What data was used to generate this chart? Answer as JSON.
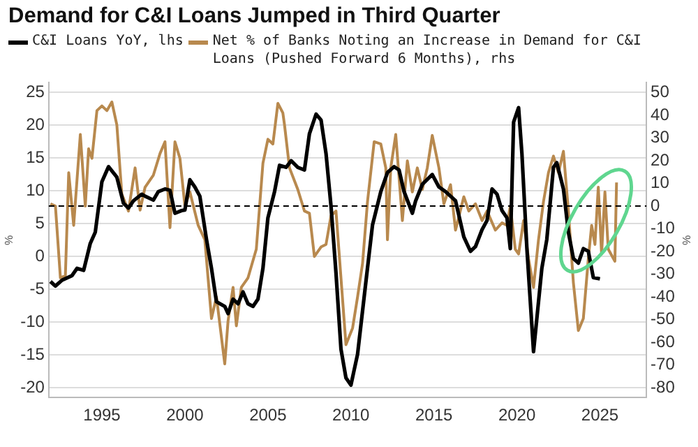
{
  "chart_data": {
    "type": "line",
    "title": "Demand for C&I Loans Jumped in Third Quarter",
    "ylabel": "%",
    "y2label": "%",
    "legend": "top left",
    "grid": "y",
    "xlim": [
      1991.8,
      2027.8
    ],
    "xticks": [
      1995,
      2000,
      2005,
      2010,
      2015,
      2020,
      2025
    ],
    "ylim": [
      -21.5,
      26.5
    ],
    "yticks": [
      -20,
      -15,
      -10,
      -5,
      0,
      5,
      10,
      15,
      20,
      25
    ],
    "y2lim": [
      -84.3,
      54.3
    ],
    "y2ticks": [
      -80,
      -70,
      -60,
      -50,
      -40,
      -30,
      -20,
      -10,
      0,
      10,
      20,
      30,
      40,
      50
    ],
    "ref_lines": [
      {
        "axis": "y2",
        "value": 0,
        "color": "#000000",
        "line_style": "dashed"
      }
    ],
    "series": [
      {
        "name": "C&I Loans YoY, lhs",
        "color": "#000000",
        "x": [
          1991.9,
          1992.2,
          1992.6,
          1993.2,
          1993.5,
          1993.9,
          1994.3,
          1994.6,
          1995,
          1995.4,
          1995.9,
          1996.3,
          1996.6,
          1996.9,
          1997.4,
          1997.6,
          1998.1,
          1998.4,
          1998.8,
          1999.1,
          1999.4,
          1999.8,
          2000,
          2000.3,
          2000.6,
          2000.9,
          2001.3,
          2001.6,
          2001.9,
          2002.4,
          2002.6,
          2002.9,
          2003.2,
          2003.5,
          2003.8,
          2004.1,
          2004.4,
          2004.7,
          2005,
          2005.4,
          2005.7,
          2006.1,
          2006.4,
          2006.8,
          2007.2,
          2007.5,
          2007.9,
          2008.2,
          2008.5,
          2008.8,
          2009.1,
          2009.4,
          2009.7,
          2010,
          2010.4,
          2010.9,
          2011.3,
          2011.8,
          2012.2,
          2012.6,
          2012.9,
          2013.2,
          2013.7,
          2013.9,
          2014.3,
          2014.9,
          2015.3,
          2015.7,
          2016.3,
          2016.8,
          2017.2,
          2017.5,
          2017.9,
          2018.2,
          2018.5,
          2018.8,
          2019.1,
          2019.4,
          2019.6,
          2019.8,
          2020.1,
          2020.3,
          2020.6,
          2021,
          2021.5,
          2021.8,
          2022.2,
          2022.4,
          2022.8,
          2023.1,
          2023.4,
          2023.7,
          2024,
          2024.3,
          2024.6,
          2025
        ],
        "values": [
          -3.8,
          -4.5,
          -3.6,
          -2.9,
          -1.8,
          -2.1,
          2,
          3.7,
          11.4,
          13.7,
          12.1,
          8.1,
          7.4,
          8.5,
          9.5,
          9.2,
          8.6,
          9.9,
          10.3,
          10.1,
          6.6,
          7.0,
          7.1,
          11.7,
          10.6,
          9.2,
          2.6,
          -1.8,
          -6.9,
          -7.6,
          -8.7,
          -6.5,
          -7.2,
          -5.4,
          -7.2,
          -7.6,
          -6.5,
          -1.8,
          5.9,
          9.9,
          13.9,
          13.6,
          14.6,
          13.6,
          13.2,
          18.7,
          21.7,
          20.8,
          15.7,
          7.7,
          -2.5,
          -14.1,
          -18.5,
          -19.6,
          -14.9,
          -3.9,
          4.8,
          9.9,
          12.8,
          13.7,
          13.2,
          9.9,
          6.6,
          8.5,
          11,
          12.5,
          10.6,
          9.9,
          8.5,
          3,
          0.8,
          1.5,
          4.1,
          5.5,
          10.3,
          9.5,
          7,
          5.9,
          1.2,
          20.5,
          22.7,
          15.7,
          1.2,
          -14.5,
          -1.8,
          2.6,
          13.6,
          14.3,
          10.3,
          3.7,
          -0.3,
          -1.0,
          1.2,
          0.8,
          -3.2,
          -3.4
        ]
      },
      {
        "name": "Net % of Banks Noting an Increase in Demand for C&I Loans (Pushed Forward 6 Months), rhs",
        "color": "#b8894e",
        "axis": "y2",
        "x": [
          1991.9,
          1992.2,
          1992.5,
          1992.8,
          1993,
          1993.3,
          1993.7,
          1994,
          1994.2,
          1994.4,
          1994.7,
          1995,
          1995.3,
          1995.6,
          1995.9,
          1996.2,
          1996.6,
          1997,
          1997.3,
          1997.6,
          1998.1,
          1998.5,
          1998.8,
          1999.1,
          1999.4,
          1999.7,
          2000,
          2000.3,
          2000.8,
          2001.2,
          2001.6,
          2001.9,
          2002.4,
          2002.6,
          2002.9,
          2003.1,
          2003.4,
          2003.8,
          2004.3,
          2004.7,
          2005,
          2005.3,
          2005.6,
          2005.9,
          2006,
          2006.3,
          2006.8,
          2007.2,
          2007.5,
          2007.8,
          2008.2,
          2008.5,
          2008.8,
          2009.1,
          2009.7,
          2010.1,
          2010.4,
          2010.7,
          2011,
          2011.4,
          2011.8,
          2012.1,
          2012.2,
          2012.4,
          2012.7,
          2013.1,
          2013.4,
          2013.7,
          2014,
          2014.3,
          2014.6,
          2014.9,
          2015.3,
          2015.6,
          2016,
          2016.3,
          2016.8,
          2017.1,
          2017.5,
          2017.9,
          2018.2,
          2018.7,
          2019.1,
          2019.4,
          2019.6,
          2019.9,
          2020.1,
          2020.4,
          2020.7,
          2021,
          2021.3,
          2021.6,
          2021.9,
          2022.2,
          2022.5,
          2022.8,
          2023.1,
          2023.4,
          2023.7,
          2024,
          2024.3,
          2024.5,
          2024.7,
          2024.9,
          2025.1,
          2025.3,
          2025.5,
          2025.9,
          2026
        ],
        "values": [
          1.0,
          0,
          -31.6,
          -30.6,
          14.7,
          -8.5,
          31.5,
          0,
          25.2,
          21,
          42,
          44.1,
          42,
          45.8,
          35.7,
          5.2,
          -2.2,
          16.8,
          -1.8,
          8.3,
          13.6,
          23.1,
          28.3,
          -9.5,
          28.3,
          21,
          0,
          6.2,
          -8.5,
          -14.8,
          -49.5,
          -40,
          -69.5,
          -50.5,
          -35.8,
          -52.7,
          -35.8,
          -31.6,
          -19,
          18.9,
          29.4,
          27.3,
          45.2,
          41,
          35.7,
          16.8,
          7.3,
          -2.2,
          -3.2,
          -22.2,
          -18,
          -16.9,
          -4.3,
          -2.2,
          -61,
          -53.7,
          -40,
          -25.3,
          2.0,
          28.3,
          27.3,
          16.8,
          -14.8,
          16.8,
          31.5,
          -6.4,
          19.9,
          6.2,
          16.8,
          7.3,
          16.8,
          31.1,
          16.8,
          1.0,
          9.4,
          -10.6,
          4.1,
          -2.2,
          1.0,
          -6.4,
          -2.2,
          -10.6,
          -7.4,
          -8.5,
          0,
          -19,
          -21.1,
          -6.4,
          -23.2,
          -35.8,
          -14.8,
          2.0,
          14.7,
          22,
          14.7,
          24.1,
          -2.2,
          -33.7,
          -54.8,
          -49.5,
          -23.2,
          -8.5,
          -16.9,
          8.3,
          -21.1,
          6.2,
          -19,
          -24.3,
          10.4
        ]
      }
    ]
  }
}
